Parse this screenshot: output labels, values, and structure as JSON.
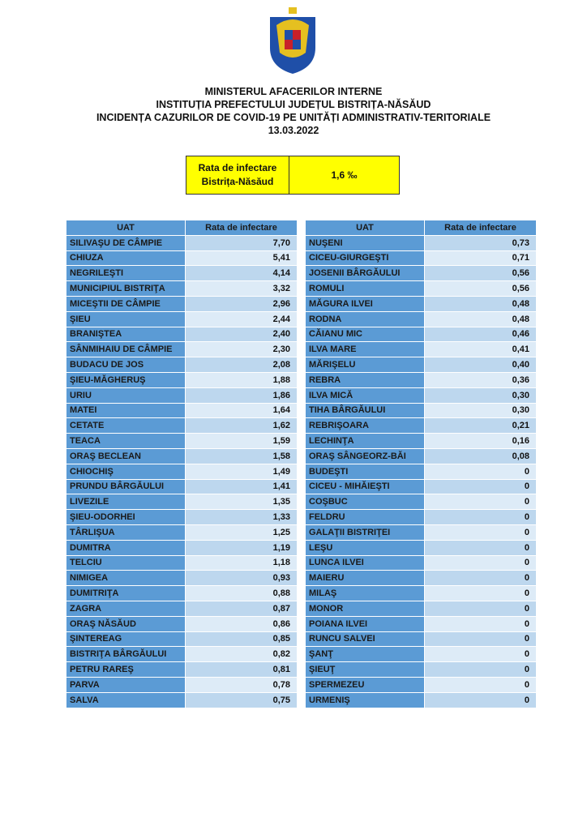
{
  "header": {
    "line1": "MINISTERUL AFACERILOR INTERNE",
    "line2": "INSTITUȚIA PREFECTULUI JUDEȚUL BISTRIȚA-NĂSĂUD",
    "line3": "INCIDENȚA CAZURILOR DE COVID-19 PE UNITĂȚI ADMINISTRATIV-TERITORIALE",
    "date": "13.03.2022"
  },
  "summary": {
    "label_line1": "Rata de infectare",
    "label_line2": "Bistrița-Năsăud",
    "value": "1,6 ‰",
    "color": "#ffff00"
  },
  "columns": {
    "uat": "UAT",
    "rate": "Rata de infectare"
  },
  "colors": {
    "name_cell": "#5b9bd5",
    "value_odd": "#bdd7ee",
    "value_even": "#ddebf7"
  },
  "left_table": [
    [
      "SILIVAŞU DE CÂMPIE",
      "7,70"
    ],
    [
      "CHIUZA",
      "5,41"
    ],
    [
      "NEGRILEŞTI",
      "4,14"
    ],
    [
      "MUNICIPIUL BISTRIŢA",
      "3,32"
    ],
    [
      "MICEŞTII DE CÂMPIE",
      "2,96"
    ],
    [
      "ŞIEU",
      "2,44"
    ],
    [
      "BRANIŞTEA",
      "2,40"
    ],
    [
      "SÂNMIHAIU DE CÂMPIE",
      "2,30"
    ],
    [
      "BUDACU DE JOS",
      "2,08"
    ],
    [
      "ŞIEU-MĂGHERUŞ",
      "1,88"
    ],
    [
      "URIU",
      "1,86"
    ],
    [
      "MATEI",
      "1,64"
    ],
    [
      "CETATE",
      "1,62"
    ],
    [
      "TEACA",
      "1,59"
    ],
    [
      "ORAŞ BECLEAN",
      "1,58"
    ],
    [
      "CHIOCHIŞ",
      "1,49"
    ],
    [
      "PRUNDU BÂRGĂULUI",
      "1,41"
    ],
    [
      "LIVEZILE",
      "1,35"
    ],
    [
      "ŞIEU-ODORHEI",
      "1,33"
    ],
    [
      "TÂRLIŞUA",
      "1,25"
    ],
    [
      "DUMITRA",
      "1,19"
    ],
    [
      "TELCIU",
      "1,18"
    ],
    [
      "NIMIGEA",
      "0,93"
    ],
    [
      "DUMITRIŢA",
      "0,88"
    ],
    [
      "ZAGRA",
      "0,87"
    ],
    [
      "ORAŞ NĂSĂUD",
      "0,86"
    ],
    [
      "ŞINTEREAG",
      "0,85"
    ],
    [
      "BISTRIŢA BÂRGĂULUI",
      "0,82"
    ],
    [
      "PETRU RAREŞ",
      "0,81"
    ],
    [
      "PARVA",
      "0,78"
    ],
    [
      "SALVA",
      "0,75"
    ]
  ],
  "right_table": [
    [
      "NUŞENI",
      "0,73"
    ],
    [
      "CICEU-GIURGEŞTI",
      "0,71"
    ],
    [
      "JOSENII BÂRGĂULUI",
      "0,56"
    ],
    [
      "ROMULI",
      "0,56"
    ],
    [
      "MĂGURA ILVEI",
      "0,48"
    ],
    [
      "RODNA",
      "0,48"
    ],
    [
      "CĂIANU MIC",
      "0,46"
    ],
    [
      "ILVA MARE",
      "0,41"
    ],
    [
      "MĂRIŞELU",
      "0,40"
    ],
    [
      "REBRA",
      "0,36"
    ],
    [
      "ILVA MICĂ",
      "0,30"
    ],
    [
      "TIHA BÂRGĂULUI",
      "0,30"
    ],
    [
      "REBRIŞOARA",
      "0,21"
    ],
    [
      "LECHINŢA",
      "0,16"
    ],
    [
      "ORAŞ SÂNGEORZ-BĂI",
      "0,08"
    ],
    [
      "BUDEŞTI",
      "0"
    ],
    [
      "CICEU - MIHĂIEŞTI",
      "0"
    ],
    [
      "COŞBUC",
      "0"
    ],
    [
      "FELDRU",
      "0"
    ],
    [
      "GALAŢII BISTRIŢEI",
      "0"
    ],
    [
      "LEŞU",
      "0"
    ],
    [
      "LUNCA ILVEI",
      "0"
    ],
    [
      "MAIERU",
      "0"
    ],
    [
      "MILAŞ",
      "0"
    ],
    [
      "MONOR",
      "0"
    ],
    [
      "POIANA ILVEI",
      "0"
    ],
    [
      "RUNCU SALVEI",
      "0"
    ],
    [
      "ŞANŢ",
      "0"
    ],
    [
      "ŞIEUŢ",
      "0"
    ],
    [
      "SPERMEZEU",
      "0"
    ],
    [
      "URMENIŞ",
      "0"
    ]
  ]
}
